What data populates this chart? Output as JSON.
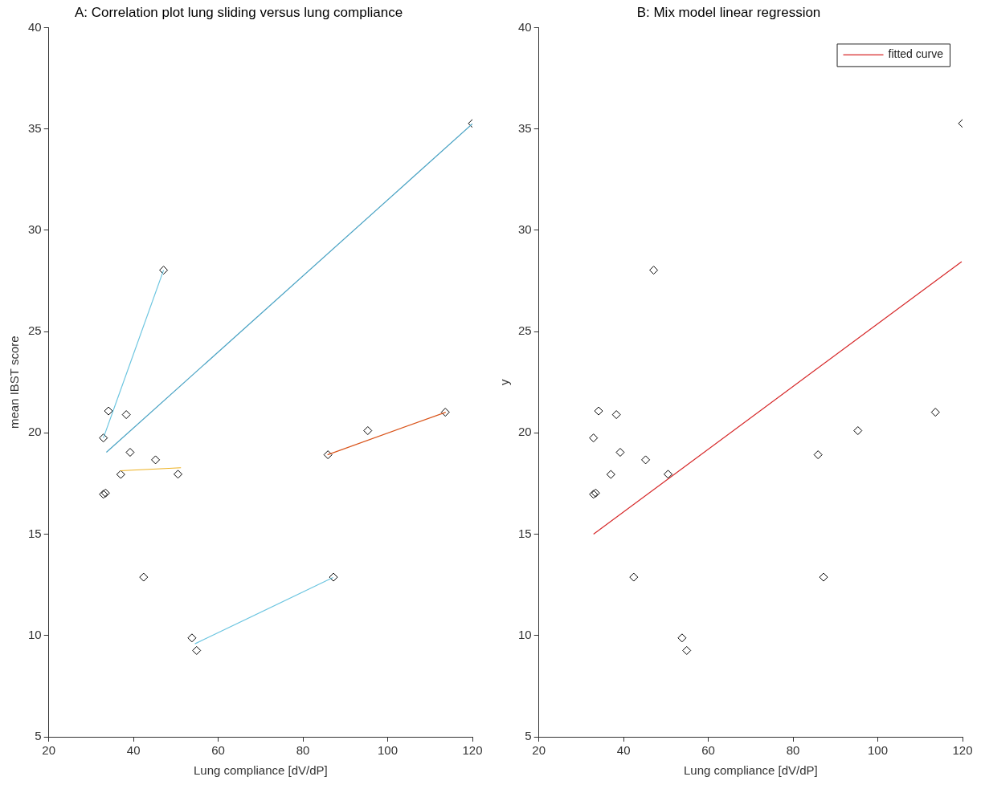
{
  "chart_data": [
    {
      "type": "scatter",
      "title": "A: Correlation plot lung sliding versus lung compliance",
      "xlabel": "Lung compliance [dV/dP]",
      "ylabel": "mean IBST score",
      "xlim": [
        20,
        120
      ],
      "ylim": [
        5,
        40
      ],
      "xticks": [
        20,
        40,
        60,
        80,
        100,
        120
      ],
      "yticks": [
        5,
        10,
        15,
        20,
        25,
        30,
        35,
        40
      ],
      "grid": false,
      "legend": false,
      "series": [
        {
          "type": "line",
          "color": "#4aa3c4",
          "marker": "none",
          "line_style": "solid",
          "x": [
            33.6,
            120
          ],
          "values": [
            19.04,
            35.25
          ]
        },
        {
          "type": "line",
          "color": "#6cc5e0",
          "marker": "none",
          "line_style": "solid",
          "x": [
            32.9,
            47.1
          ],
          "values": [
            19.75,
            28.03
          ]
        },
        {
          "type": "line",
          "color": "#edb120",
          "marker": "none",
          "line_style": "solid",
          "x": [
            36.9,
            51.2
          ],
          "values": [
            18.13,
            18.28
          ]
        },
        {
          "type": "line",
          "color": "#d95319",
          "marker": "none",
          "line_style": "solid",
          "x": [
            85.8,
            113.7
          ],
          "values": [
            18.92,
            21.02
          ]
        },
        {
          "type": "line",
          "color": "#6cc5e0",
          "marker": "none",
          "line_style": "solid",
          "x": [
            54.5,
            87.1
          ],
          "values": [
            9.59,
            12.86
          ]
        },
        {
          "color": "#000000",
          "marker": "diamond",
          "x": [
            32.9,
            34.1,
            38.3,
            39.2,
            37.0,
            32.9,
            33.4,
            45.2,
            50.5,
            42.4,
            53.8,
            54.9,
            85.9,
            87.2,
            95.3,
            113.6,
            120,
            47.1
          ],
          "values": [
            19.75,
            21.08,
            20.9,
            19.04,
            17.95,
            16.97,
            17.03,
            18.67,
            17.96,
            12.88,
            9.88,
            9.26,
            18.92,
            12.88,
            20.11,
            21.02,
            35.27,
            28.03
          ]
        }
      ]
    },
    {
      "type": "scatter",
      "title": "B: Mix model linear regression",
      "xlabel": "Lung compliance [dV/dP]",
      "ylabel": "y",
      "xlim": [
        20,
        120
      ],
      "ylim": [
        5,
        40
      ],
      "xticks": [
        20,
        40,
        60,
        80,
        100,
        120
      ],
      "yticks": [
        5,
        10,
        15,
        20,
        25,
        30,
        35,
        40
      ],
      "grid": false,
      "legend": "top right",
      "series": [
        {
          "color": "#000000",
          "marker": "diamond",
          "x": [
            32.9,
            34.1,
            38.3,
            39.2,
            37.0,
            32.9,
            33.4,
            45.2,
            50.5,
            42.4,
            53.8,
            54.9,
            85.9,
            87.2,
            95.3,
            113.6,
            120,
            47.1
          ],
          "values": [
            19.75,
            21.08,
            20.9,
            19.04,
            17.95,
            16.97,
            17.03,
            18.67,
            17.96,
            12.88,
            9.88,
            9.26,
            18.92,
            12.88,
            20.11,
            21.02,
            35.27,
            28.03
          ]
        },
        {
          "type": "line",
          "name": "fitted curve",
          "color": "#d62728",
          "marker": "none",
          "line_style": "solid",
          "x": [
            32.9,
            119.8
          ],
          "values": [
            15.0,
            28.45
          ]
        }
      ]
    }
  ]
}
